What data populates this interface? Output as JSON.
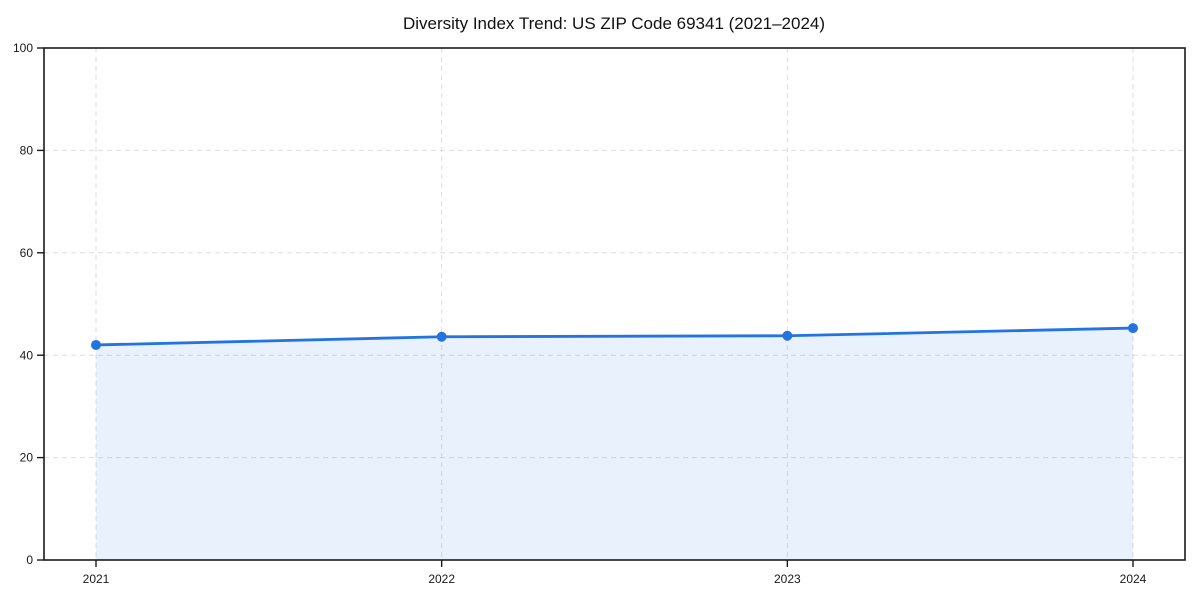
{
  "chart_data": {
    "type": "area",
    "title": "Diversity Index Trend: US ZIP Code 69341 (2021–2024)",
    "categories": [
      "2021",
      "2022",
      "2023",
      "2024"
    ],
    "series": [
      {
        "name": "Diversity Index",
        "values": [
          42.0,
          43.6,
          43.8,
          45.3
        ]
      }
    ],
    "xlabel": "",
    "ylabel": "",
    "ylim": [
      0,
      100
    ],
    "yticks": [
      0,
      20,
      40,
      60,
      80,
      100
    ],
    "grid": true,
    "legend": false,
    "colors": {
      "line": "#2374e1",
      "marker": "#2374e1",
      "fill": "rgba(35,116,225,0.10)",
      "gridline": "#dedede",
      "spine": "#1a1a1a",
      "text": "#111111"
    }
  }
}
